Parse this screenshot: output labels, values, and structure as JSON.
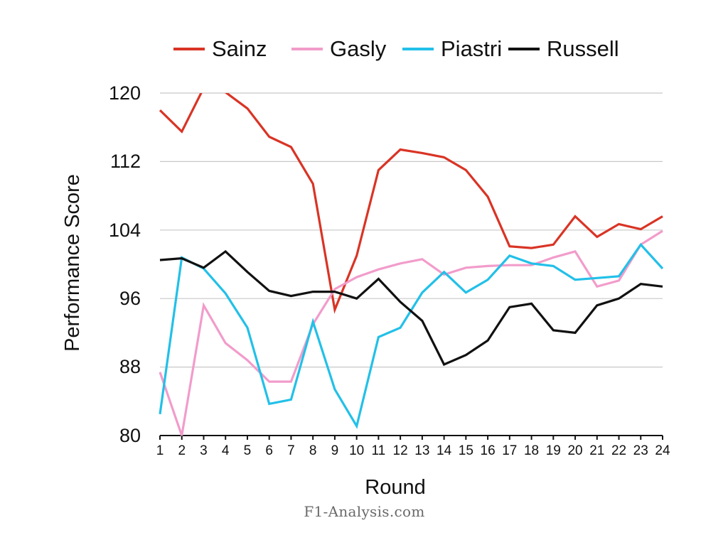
{
  "chart_data": {
    "type": "line",
    "title": "",
    "xlabel": "Round",
    "ylabel": "Performance Score",
    "ylim": [
      80,
      120
    ],
    "yticks": [
      80,
      88,
      96,
      104,
      112,
      120
    ],
    "grid": "horizontal",
    "legend_position": "top",
    "x": [
      1,
      2,
      3,
      4,
      5,
      6,
      7,
      8,
      9,
      10,
      11,
      12,
      13,
      14,
      15,
      16,
      17,
      18,
      19,
      20,
      21,
      22,
      23,
      24
    ],
    "series": [
      {
        "name": "Sainz",
        "color": "#d93425",
        "values": [
          118.0,
          115.5,
          120.6,
          120.1,
          118.2,
          114.9,
          113.7,
          109.4,
          94.7,
          101.0,
          111.0,
          113.4,
          113.0,
          112.5,
          111.0,
          107.9,
          102.1,
          101.9,
          102.3,
          105.6,
          103.2,
          104.7,
          104.1,
          105.6
        ]
      },
      {
        "name": "Gasly",
        "color": "#f29ccb",
        "values": [
          87.4,
          80.0,
          95.2,
          90.8,
          88.8,
          86.3,
          86.3,
          93.0,
          97.1,
          98.5,
          99.4,
          100.1,
          100.6,
          98.8,
          99.6,
          99.8,
          99.9,
          99.9,
          100.8,
          101.5,
          97.4,
          98.1,
          102.3,
          103.9
        ]
      },
      {
        "name": "Piastri",
        "color": "#22c0e8",
        "values": [
          82.5,
          100.8,
          99.5,
          96.6,
          92.6,
          83.7,
          84.2,
          93.3,
          85.4,
          81.1,
          91.5,
          92.6,
          96.7,
          99.1,
          96.7,
          98.2,
          101.0,
          100.1,
          99.8,
          98.2,
          98.4,
          98.6,
          102.3,
          99.5
        ]
      },
      {
        "name": "Russell",
        "color": "#111111",
        "values": [
          100.5,
          100.7,
          99.6,
          101.5,
          99.1,
          96.9,
          96.3,
          96.8,
          96.8,
          96.0,
          98.3,
          95.6,
          93.4,
          88.3,
          89.4,
          91.1,
          95.0,
          95.4,
          92.3,
          92.0,
          95.2,
          96.0,
          97.7,
          97.4
        ]
      }
    ]
  },
  "legend": {
    "items": [
      {
        "label": "Sainz",
        "color": "#d93425"
      },
      {
        "label": "Gasly",
        "color": "#f29ccb"
      },
      {
        "label": "Piastri",
        "color": "#22c0e8"
      },
      {
        "label": "Russell",
        "color": "#111111"
      }
    ]
  },
  "axes": {
    "y_ticks": [
      "120",
      "112",
      "104",
      "96",
      "88",
      "80"
    ],
    "x_ticks": [
      "1",
      "2",
      "3",
      "4",
      "5",
      "6",
      "7",
      "8",
      "9",
      "10",
      "11",
      "12",
      "13",
      "14",
      "15",
      "16",
      "17",
      "18",
      "19",
      "20",
      "21",
      "22",
      "23",
      "24"
    ],
    "x_label": "Round",
    "y_label": "Performance Score"
  },
  "footer": {
    "watermark": "F1-Analysis.com"
  }
}
